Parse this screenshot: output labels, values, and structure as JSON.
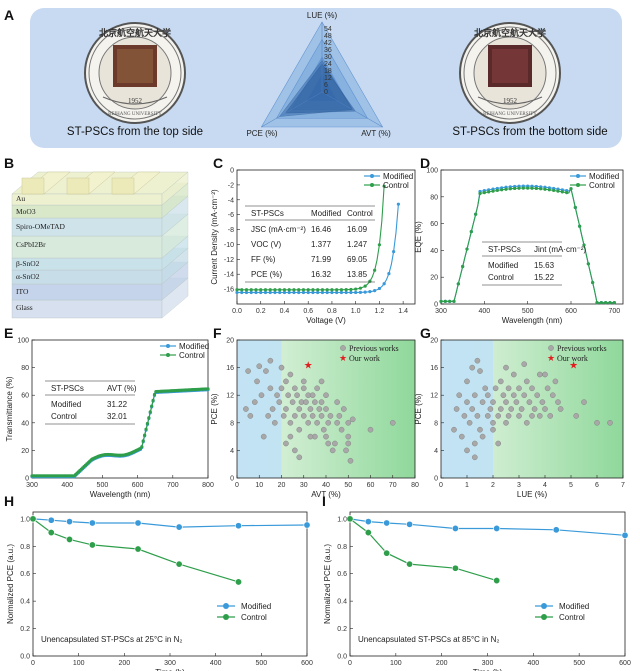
{
  "figure": {
    "panel_labels": [
      "A",
      "B",
      "C",
      "D",
      "E",
      "F",
      "G",
      "H",
      "I"
    ],
    "colors": {
      "modified": "#3a9ad9",
      "control": "#2e9e4b",
      "panel_bg": "#c8daf1",
      "star": "#e02020",
      "prev": "#9a9a9a"
    }
  },
  "panelA": {
    "caption_left": "ST-PSCs from the top side",
    "caption_right": "ST-PSCs from the bottom side",
    "seal_text": "BEIHANG UNIVERSITY",
    "seal_year": "1952",
    "seal_chars": "北京航空航天大学",
    "radar_labels": {
      "top": "LUE (%)",
      "left": "PCE (%)",
      "right": "AVT (%)"
    },
    "radar_ticks": [
      "0",
      "6",
      "12",
      "18",
      "24",
      "30",
      "36",
      "42",
      "48",
      "54"
    ]
  },
  "panelB": {
    "layers": [
      "Au",
      "MoO3",
      "Spiro-OMeTAD",
      "CsPbI2Br",
      "β-SnO2",
      "α-SnO2",
      "ITO",
      "Glass"
    ]
  },
  "chart_data": [
    {
      "panel": "C",
      "type": "line",
      "xlabel": "Voltage (V)",
      "ylabel": "Current Density (mA·cm⁻²)",
      "xlim": [
        0,
        1.5
      ],
      "ylim": [
        -18,
        0
      ],
      "xticks": [
        "0.0",
        "0.2",
        "0.4",
        "0.6",
        "0.8",
        "1.0",
        "1.2",
        "1.4"
      ],
      "yticks": [
        "-16",
        "-14",
        "-12",
        "-10",
        "-8",
        "-6",
        "-4",
        "-2",
        "0"
      ],
      "series": [
        {
          "name": "Modified",
          "jsc": 16.46,
          "voc": 1.377
        },
        {
          "name": "Control",
          "jsc": 16.09,
          "voc": 1.247
        }
      ],
      "table": {
        "headers": [
          "ST-PSCs",
          "Modified",
          "Control"
        ],
        "rows": [
          [
            "JSC (mA·cm⁻²)",
            "16.46",
            "16.09"
          ],
          [
            "VOC (V)",
            "1.377",
            "1.247"
          ],
          [
            "FF (%)",
            "71.99",
            "69.05"
          ],
          [
            "PCE (%)",
            "16.32",
            "13.85"
          ]
        ]
      }
    },
    {
      "panel": "D",
      "type": "line",
      "xlabel": "Wavelength (nm)",
      "ylabel": "EQE (%)",
      "xlim": [
        300,
        720
      ],
      "ylim": [
        0,
        100
      ],
      "xticks": [
        "300",
        "400",
        "500",
        "600",
        "700"
      ],
      "yticks": [
        "0",
        "20",
        "40",
        "60",
        "80",
        "100"
      ],
      "series": [
        {
          "name": "Modified"
        },
        {
          "name": "Control"
        }
      ],
      "table": {
        "headers": [
          "ST-PSCs",
          "Jint (mA·cm⁻²)"
        ],
        "rows": [
          [
            "Modified",
            "15.63"
          ],
          [
            "Control",
            "15.22"
          ]
        ]
      }
    },
    {
      "panel": "E",
      "type": "line",
      "xlabel": "Wavelength (nm)",
      "ylabel": "Transmittance (%)",
      "xlim": [
        300,
        800
      ],
      "ylim": [
        0,
        100
      ],
      "xticks": [
        "300",
        "400",
        "500",
        "600",
        "700",
        "800"
      ],
      "yticks": [
        "0",
        "20",
        "40",
        "60",
        "80",
        "100"
      ],
      "series": [
        {
          "name": "Modified"
        },
        {
          "name": "Control"
        }
      ],
      "table": {
        "headers": [
          "ST-PSCs",
          "AVT (%)"
        ],
        "rows": [
          [
            "Modified",
            "31.22"
          ],
          [
            "Control",
            "32.01"
          ]
        ]
      }
    },
    {
      "panel": "F",
      "type": "scatter",
      "xlabel": "AVT (%)",
      "ylabel": "PCE (%)",
      "xlim": [
        0,
        80
      ],
      "ylim": [
        0,
        20
      ],
      "xticks": [
        "0",
        "10",
        "20",
        "30",
        "40",
        "50",
        "60",
        "70",
        "80"
      ],
      "yticks": [
        "0",
        "4",
        "8",
        "12",
        "16",
        "20"
      ],
      "legend": [
        "Previous works",
        "Our work"
      ],
      "our_work": [
        32,
        16.3
      ],
      "previous": [
        [
          4,
          10
        ],
        [
          5,
          15.5
        ],
        [
          6,
          9
        ],
        [
          8,
          11
        ],
        [
          9,
          14
        ],
        [
          10,
          16.2
        ],
        [
          11,
          12
        ],
        [
          12,
          6
        ],
        [
          13,
          15.5
        ],
        [
          14,
          9
        ],
        [
          15,
          13
        ],
        [
          16,
          10
        ],
        [
          17,
          8
        ],
        [
          18,
          12
        ],
        [
          19,
          11
        ],
        [
          20,
          13
        ],
        [
          21,
          9
        ],
        [
          22,
          14
        ],
        [
          22,
          10
        ],
        [
          23,
          12
        ],
        [
          24,
          8
        ],
        [
          24,
          15
        ],
        [
          25,
          11
        ],
        [
          26,
          9
        ],
        [
          26,
          13
        ],
        [
          27,
          12
        ],
        [
          28,
          10
        ],
        [
          28,
          7
        ],
        [
          29,
          11
        ],
        [
          30,
          9
        ],
        [
          30,
          13
        ],
        [
          31,
          11
        ],
        [
          32,
          8
        ],
        [
          32,
          12
        ],
        [
          33,
          10
        ],
        [
          34,
          9
        ],
        [
          34,
          12
        ],
        [
          35,
          11
        ],
        [
          36,
          8
        ],
        [
          36,
          13
        ],
        [
          37,
          10
        ],
        [
          38,
          9
        ],
        [
          38,
          11
        ],
        [
          39,
          7
        ],
        [
          40,
          10
        ],
        [
          40,
          6
        ],
        [
          41,
          8
        ],
        [
          42,
          9
        ],
        [
          43,
          4
        ],
        [
          44,
          5
        ],
        [
          45,
          8
        ],
        [
          46,
          9
        ],
        [
          47,
          7
        ],
        [
          48,
          10
        ],
        [
          49,
          4
        ],
        [
          50,
          5
        ],
        [
          50,
          8
        ],
        [
          51,
          2.5
        ],
        [
          52,
          8.5
        ],
        [
          60,
          7
        ],
        [
          70,
          8
        ],
        [
          22,
          5
        ],
        [
          26,
          4
        ],
        [
          28,
          3
        ],
        [
          35,
          6
        ],
        [
          45,
          11
        ],
        [
          15,
          17
        ],
        [
          20,
          16
        ],
        [
          30,
          14
        ],
        [
          38,
          14
        ],
        [
          40,
          12
        ],
        [
          24,
          6
        ],
        [
          33,
          6
        ],
        [
          41,
          5
        ],
        [
          50,
          6
        ]
      ]
    },
    {
      "panel": "G",
      "type": "scatter",
      "xlabel": "LUE (%)",
      "ylabel": "PCE (%)",
      "xlim": [
        0,
        7
      ],
      "ylim": [
        0,
        20
      ],
      "xticks": [
        "0",
        "1",
        "2",
        "3",
        "4",
        "5",
        "6",
        "7"
      ],
      "yticks": [
        "0",
        "4",
        "8",
        "12",
        "16",
        "20"
      ],
      "legend": [
        "Previous works",
        "Our work"
      ],
      "our_work": [
        5.1,
        16.3
      ],
      "previous": [
        [
          0.5,
          7
        ],
        [
          0.6,
          10
        ],
        [
          0.7,
          12
        ],
        [
          0.8,
          6
        ],
        [
          0.9,
          9
        ],
        [
          1.0,
          11
        ],
        [
          1.0,
          14
        ],
        [
          1.1,
          8
        ],
        [
          1.2,
          16
        ],
        [
          1.2,
          10
        ],
        [
          1.3,
          12
        ],
        [
          1.3,
          3
        ],
        [
          1.4,
          9
        ],
        [
          1.5,
          7
        ],
        [
          1.5,
          15.5
        ],
        [
          1.6,
          11
        ],
        [
          1.7,
          13
        ],
        [
          1.8,
          9
        ],
        [
          1.8,
          12
        ],
        [
          1.9,
          10
        ],
        [
          2.0,
          8
        ],
        [
          2.0,
          11
        ],
        [
          2.1,
          13
        ],
        [
          2.2,
          9
        ],
        [
          2.3,
          10
        ],
        [
          2.3,
          14
        ],
        [
          2.4,
          12
        ],
        [
          2.5,
          8
        ],
        [
          2.5,
          11
        ],
        [
          2.6,
          13
        ],
        [
          2.6,
          9
        ],
        [
          2.7,
          10
        ],
        [
          2.8,
          12
        ],
        [
          2.8,
          15
        ],
        [
          2.9,
          11
        ],
        [
          3.0,
          9
        ],
        [
          3.0,
          13
        ],
        [
          3.1,
          10
        ],
        [
          3.2,
          12
        ],
        [
          3.3,
          8
        ],
        [
          3.3,
          14
        ],
        [
          3.4,
          11
        ],
        [
          3.5,
          9
        ],
        [
          3.5,
          13
        ],
        [
          3.6,
          10
        ],
        [
          3.7,
          12
        ],
        [
          3.8,
          9
        ],
        [
          3.8,
          15
        ],
        [
          3.9,
          11
        ],
        [
          4.0,
          10
        ],
        [
          4.1,
          13
        ],
        [
          4.2,
          9
        ],
        [
          4.3,
          12
        ],
        [
          4.4,
          14
        ],
        [
          4.5,
          11
        ],
        [
          4.6,
          10
        ],
        [
          5.2,
          9
        ],
        [
          5.5,
          11
        ],
        [
          6.0,
          8
        ],
        [
          6.5,
          8
        ],
        [
          1.0,
          4
        ],
        [
          1.3,
          5
        ],
        [
          1.6,
          6
        ],
        [
          2.0,
          7
        ],
        [
          2.2,
          5
        ],
        [
          1.4,
          17
        ],
        [
          2.5,
          16
        ],
        [
          3.2,
          16.5
        ],
        [
          4.0,
          15
        ]
      ]
    },
    {
      "panel": "H",
      "type": "line",
      "xlabel": "Time (h)",
      "ylabel": "Normalized PCE (a.u.)",
      "xlim": [
        0,
        600
      ],
      "ylim": [
        0,
        1.05
      ],
      "xticks": [
        "0",
        "100",
        "200",
        "300",
        "400",
        "500",
        "600"
      ],
      "yticks": [
        "0.0",
        "0.2",
        "0.4",
        "0.6",
        "0.8",
        "1.0"
      ],
      "annotation": "Unencapsulated ST-PSCs at 25°C in N₂",
      "series": [
        {
          "name": "Modified",
          "x": [
            0,
            40,
            80,
            130,
            230,
            320,
            450,
            600
          ],
          "y": [
            1.0,
            0.99,
            0.98,
            0.97,
            0.97,
            0.94,
            0.95,
            0.955
          ]
        },
        {
          "name": "Control",
          "x": [
            0,
            40,
            80,
            130,
            230,
            320,
            450
          ],
          "y": [
            1.0,
            0.9,
            0.85,
            0.81,
            0.78,
            0.67,
            0.54
          ]
        }
      ]
    },
    {
      "panel": "I",
      "type": "line",
      "xlabel": "Time (h)",
      "ylabel": "Normalized PCE (a.u.)",
      "xlim": [
        0,
        600
      ],
      "ylim": [
        0,
        1.05
      ],
      "xticks": [
        "0",
        "100",
        "200",
        "300",
        "400",
        "500",
        "600"
      ],
      "yticks": [
        "0.0",
        "0.2",
        "0.4",
        "0.6",
        "0.8",
        "1.0"
      ],
      "annotation": "Unencapsulated ST-PSCs at 85°C in N₂",
      "series": [
        {
          "name": "Modified",
          "x": [
            0,
            40,
            80,
            130,
            230,
            320,
            450,
            600
          ],
          "y": [
            1.0,
            0.98,
            0.97,
            0.96,
            0.93,
            0.93,
            0.92,
            0.88
          ]
        },
        {
          "name": "Control",
          "x": [
            0,
            40,
            80,
            130,
            230,
            320
          ],
          "y": [
            1.0,
            0.9,
            0.75,
            0.67,
            0.64,
            0.55
          ]
        }
      ]
    }
  ]
}
